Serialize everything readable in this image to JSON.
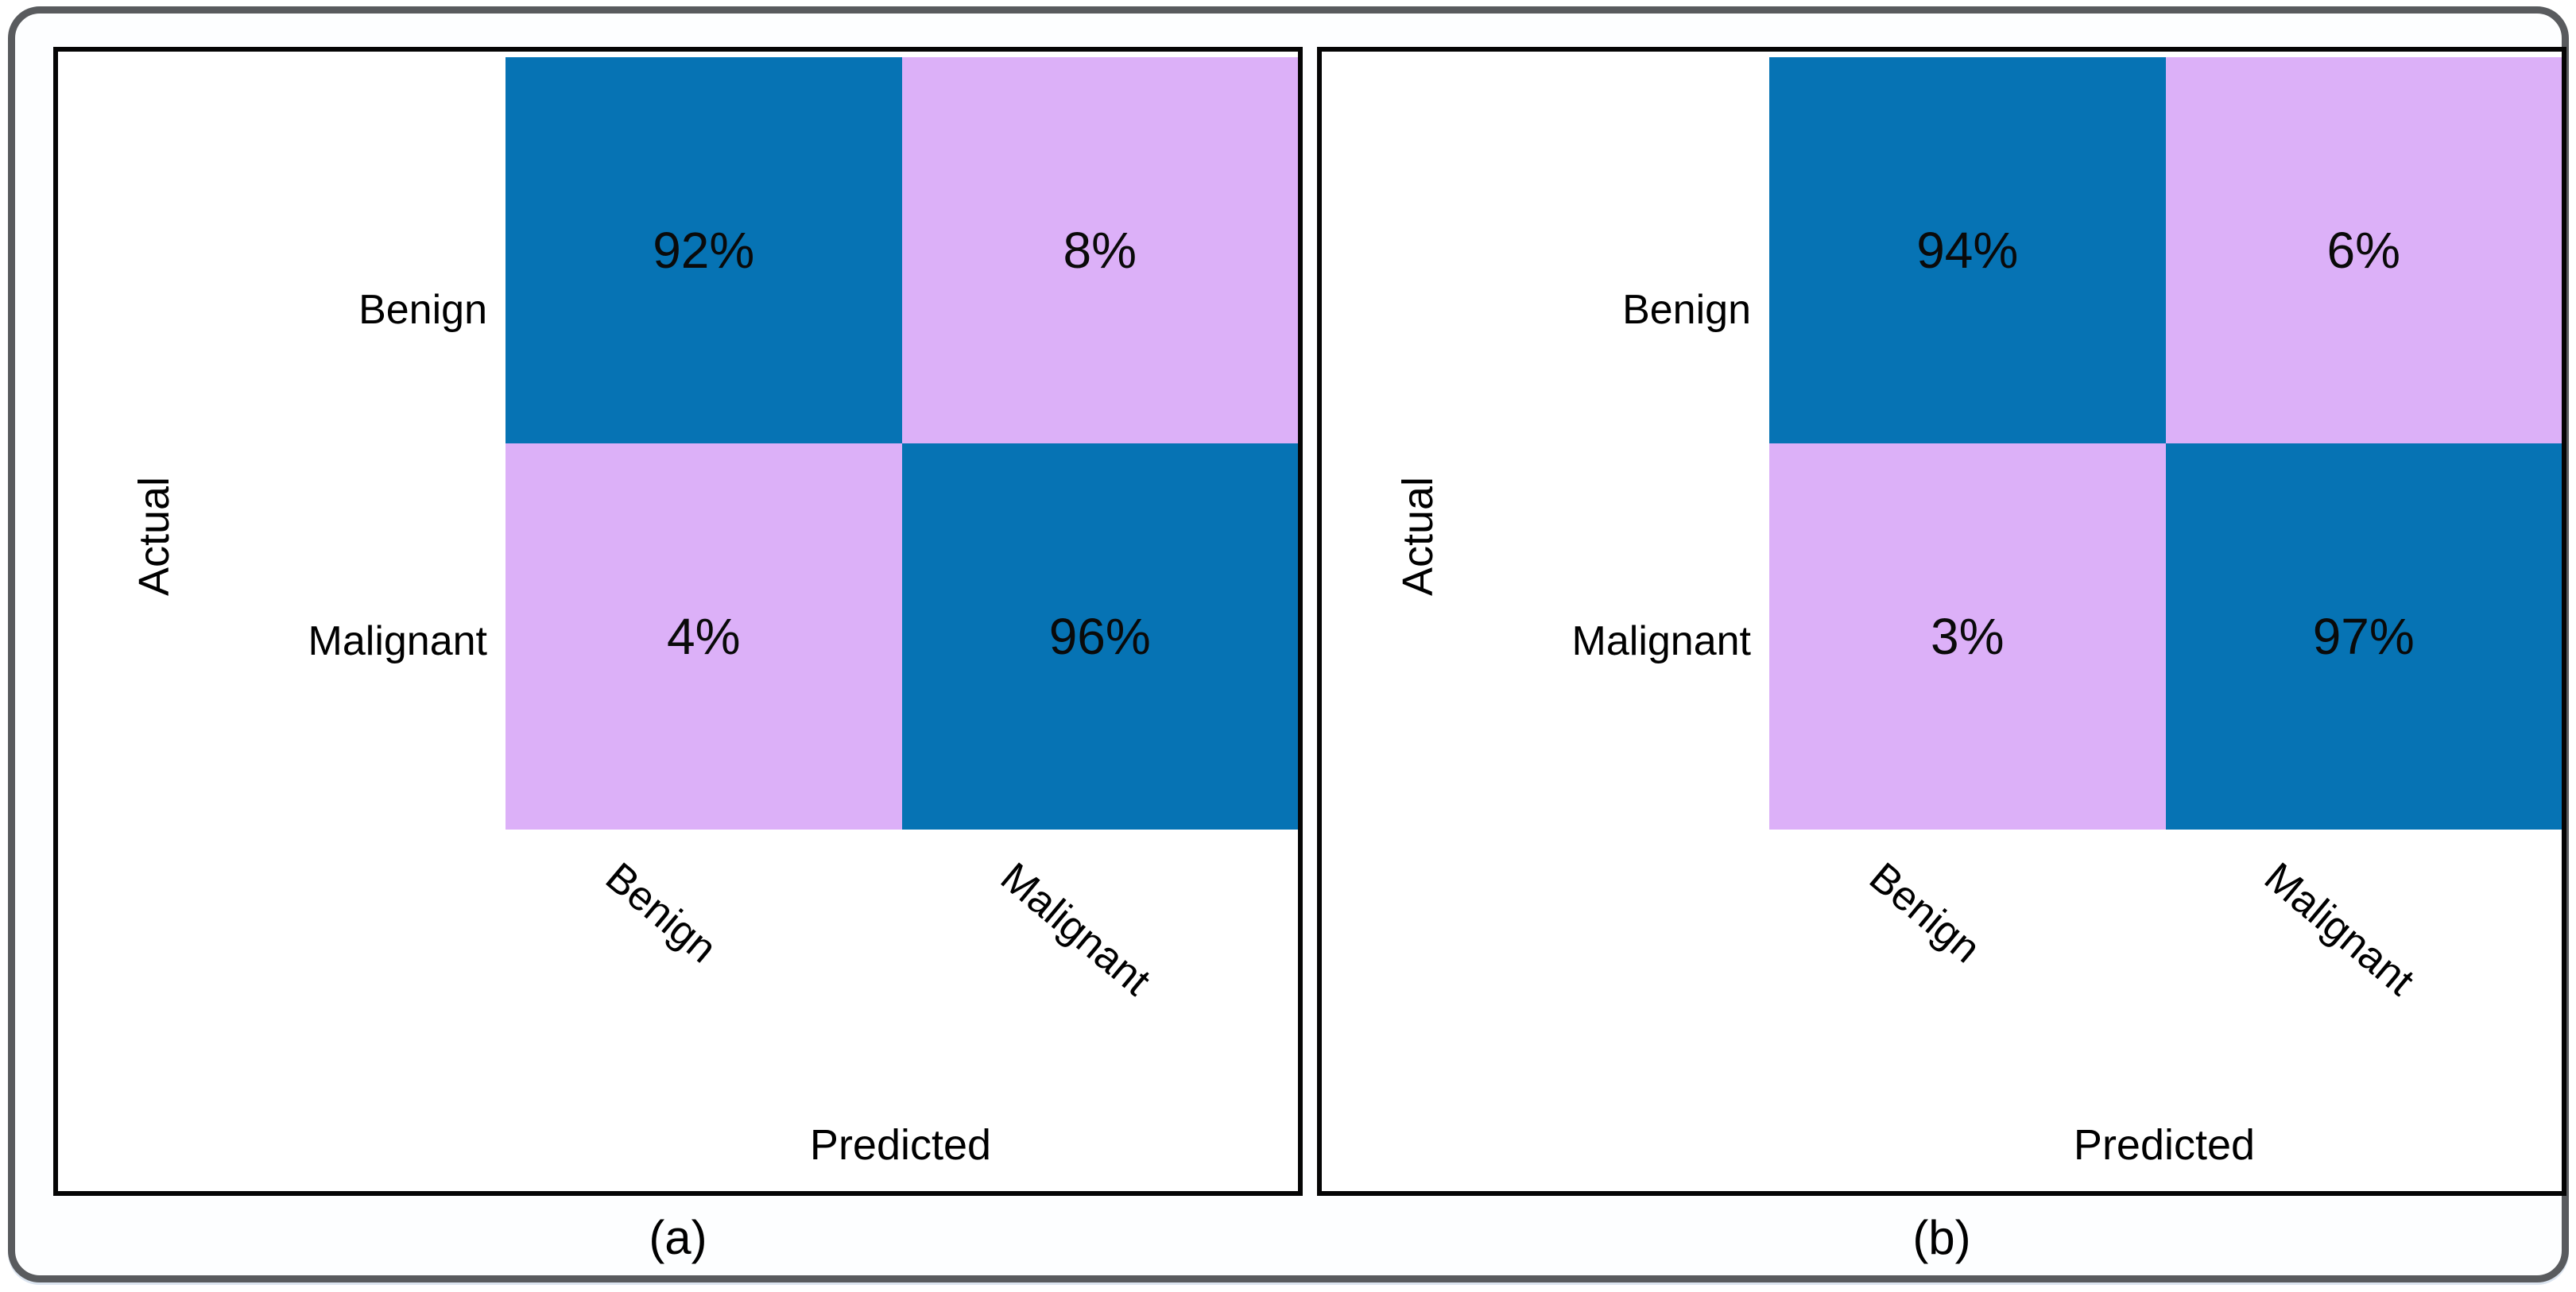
{
  "figure": {
    "panels": [
      {
        "caption": "(a)",
        "y_axis_label": "Actual",
        "x_axis_label": "Predicted",
        "row_labels": [
          "Benign",
          "Malignant"
        ],
        "col_labels": [
          "Benign",
          "Malignant"
        ],
        "cells": [
          [
            "92%",
            "8%"
          ],
          [
            "4%",
            "96%"
          ]
        ]
      },
      {
        "caption": "(b)",
        "y_axis_label": "Actual",
        "x_axis_label": "Predicted",
        "row_labels": [
          "Benign",
          "Malignant"
        ],
        "col_labels": [
          "Benign",
          "Malignant"
        ],
        "cells": [
          [
            "94%",
            "6%"
          ],
          [
            "3%",
            "97%"
          ]
        ]
      }
    ],
    "colors": {
      "diagonal_cell": "#0673b4",
      "off_diagonal_cell": "#dcb0f8",
      "panel_border": "#050505",
      "outer_border": "#595b5e",
      "label_text": "#000000"
    }
  },
  "chart_data": [
    {
      "type": "heatmap",
      "panel": "(a)",
      "xlabel": "Predicted",
      "ylabel": "Actual",
      "x_categories": [
        "Benign",
        "Malignant"
      ],
      "y_categories": [
        "Benign",
        "Malignant"
      ],
      "values_percent": [
        [
          92,
          8
        ],
        [
          4,
          96
        ]
      ],
      "color_map": {
        "diagonal": "#0673b4",
        "off_diagonal": "#dcb0f8"
      },
      "legend": "none",
      "grid": "off"
    },
    {
      "type": "heatmap",
      "panel": "(b)",
      "xlabel": "Predicted",
      "ylabel": "Actual",
      "x_categories": [
        "Benign",
        "Malignant"
      ],
      "y_categories": [
        "Benign",
        "Malignant"
      ],
      "values_percent": [
        [
          94,
          6
        ],
        [
          3,
          97
        ]
      ],
      "color_map": {
        "diagonal": "#0673b4",
        "off_diagonal": "#dcb0f8"
      },
      "legend": "none",
      "grid": "off"
    }
  ]
}
